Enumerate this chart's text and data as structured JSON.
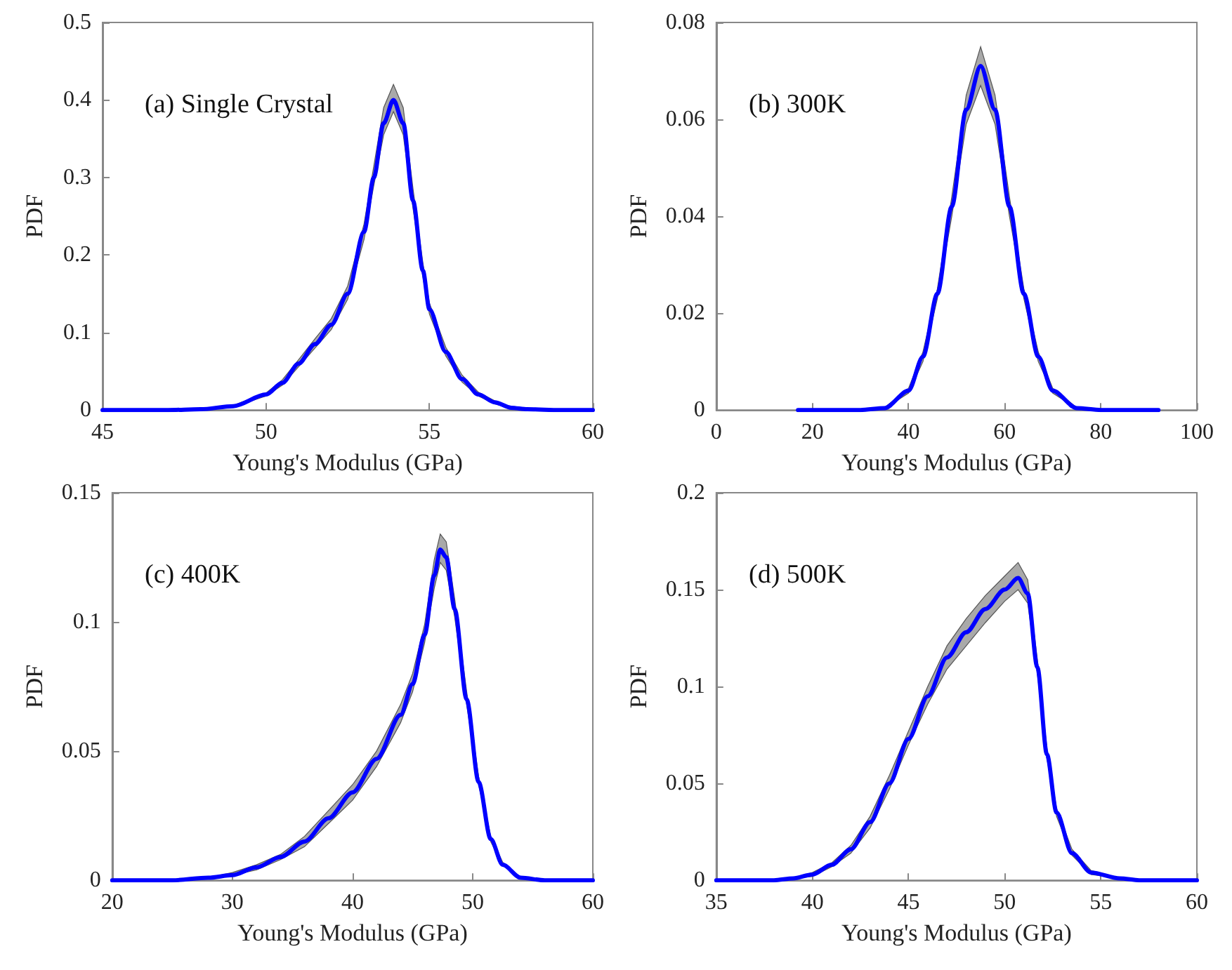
{
  "chart_data": [
    {
      "type": "line",
      "title": "(a) Single Crystal",
      "xlabel": "Young's Modulus (GPa)",
      "ylabel": "PDF",
      "xlim": [
        45,
        60
      ],
      "xticks": [
        45,
        50,
        55,
        60
      ],
      "ylim": [
        0,
        0.5
      ],
      "yticks": [
        0,
        0.1,
        0.2,
        0.3,
        0.4,
        0.5
      ],
      "grid": false,
      "marker": "none",
      "series": [
        {
          "color": "#0000ff",
          "x": [
            45,
            47,
            48,
            49,
            50,
            50.5,
            51,
            51.5,
            52,
            52.5,
            53,
            53.3,
            53.6,
            53.9,
            54.2,
            54.5,
            54.8,
            55,
            55.5,
            56,
            56.5,
            57,
            57.5,
            58,
            59,
            60
          ],
          "values": [
            0,
            0,
            0.001,
            0.005,
            0.02,
            0.035,
            0.06,
            0.085,
            0.11,
            0.15,
            0.23,
            0.3,
            0.37,
            0.4,
            0.37,
            0.27,
            0.18,
            0.13,
            0.075,
            0.04,
            0.02,
            0.01,
            0.003,
            0.001,
            0,
            0
          ],
          "lower": [
            0,
            0,
            0.001,
            0.004,
            0.018,
            0.032,
            0.056,
            0.08,
            0.104,
            0.143,
            0.22,
            0.29,
            0.355,
            0.385,
            0.355,
            0.26,
            0.172,
            0.124,
            0.07,
            0.036,
            0.018,
            0.008,
            0.002,
            0.001,
            0,
            0
          ],
          "upper": [
            0,
            0,
            0.002,
            0.006,
            0.022,
            0.039,
            0.065,
            0.092,
            0.118,
            0.16,
            0.24,
            0.315,
            0.39,
            0.42,
            0.39,
            0.285,
            0.19,
            0.138,
            0.081,
            0.045,
            0.023,
            0.012,
            0.004,
            0.001,
            0,
            0
          ]
        }
      ]
    },
    {
      "type": "line",
      "title": "(b) 300K",
      "xlabel": "Young's Modulus (GPa)",
      "ylabel": "PDF",
      "xlim": [
        0,
        100
      ],
      "xticks": [
        0,
        20,
        40,
        60,
        80,
        100
      ],
      "ylim": [
        0,
        0.08
      ],
      "yticks": [
        0,
        0.02,
        0.04,
        0.06,
        0.08
      ],
      "grid": false,
      "marker": "none",
      "series": [
        {
          "color": "#0000ff",
          "x": [
            17,
            30,
            35,
            40,
            43,
            46,
            49,
            52,
            55,
            58,
            61,
            64,
            67,
            70,
            75,
            80,
            92
          ],
          "values": [
            0,
            0,
            0.0004,
            0.004,
            0.011,
            0.024,
            0.042,
            0.062,
            0.071,
            0.062,
            0.042,
            0.024,
            0.011,
            0.004,
            0.0004,
            0,
            0
          ],
          "lower": [
            0,
            0,
            0.0003,
            0.0035,
            0.01,
            0.023,
            0.04,
            0.059,
            0.067,
            0.059,
            0.04,
            0.023,
            0.01,
            0.0035,
            0.0003,
            0,
            0
          ],
          "upper": [
            0,
            0,
            0.0005,
            0.0045,
            0.012,
            0.025,
            0.044,
            0.065,
            0.075,
            0.065,
            0.044,
            0.025,
            0.012,
            0.0045,
            0.0005,
            0,
            0
          ]
        }
      ]
    },
    {
      "type": "line",
      "title": "(c) 400K",
      "xlabel": "Young's Modulus (GPa)",
      "ylabel": "PDF",
      "xlim": [
        20,
        60
      ],
      "xticks": [
        20,
        30,
        40,
        50,
        60
      ],
      "ylim": [
        0,
        0.15
      ],
      "yticks": [
        0,
        0.05,
        0.1,
        0.15
      ],
      "grid": false,
      "marker": "none",
      "series": [
        {
          "color": "#0000ff",
          "x": [
            20,
            25,
            28,
            30,
            32,
            34,
            36,
            38,
            40,
            42,
            44,
            45,
            46,
            46.8,
            47.3,
            47.8,
            48.5,
            49.5,
            50.5,
            51.5,
            52.5,
            54,
            56,
            60
          ],
          "values": [
            0,
            0,
            0.001,
            0.002,
            0.005,
            0.009,
            0.015,
            0.024,
            0.034,
            0.047,
            0.064,
            0.076,
            0.095,
            0.118,
            0.128,
            0.125,
            0.105,
            0.07,
            0.038,
            0.016,
            0.006,
            0.001,
            0,
            0
          ],
          "lower": [
            0,
            0,
            0.001,
            0.002,
            0.004,
            0.008,
            0.013,
            0.022,
            0.031,
            0.044,
            0.061,
            0.073,
            0.092,
            0.113,
            0.123,
            0.12,
            0.102,
            0.068,
            0.037,
            0.015,
            0.006,
            0.001,
            0,
            0
          ],
          "upper": [
            0,
            0,
            0.001,
            0.003,
            0.006,
            0.01,
            0.017,
            0.027,
            0.037,
            0.05,
            0.068,
            0.08,
            0.099,
            0.124,
            0.134,
            0.131,
            0.109,
            0.073,
            0.04,
            0.017,
            0.007,
            0.001,
            0,
            0
          ]
        }
      ]
    },
    {
      "type": "line",
      "title": "(d) 500K",
      "xlabel": "Young's Modulus (GPa)",
      "ylabel": "PDF",
      "xlim": [
        35,
        60
      ],
      "xticks": [
        35,
        40,
        45,
        50,
        55,
        60
      ],
      "ylim": [
        0,
        0.2
      ],
      "yticks": [
        0,
        0.05,
        0.1,
        0.15,
        0.2
      ],
      "grid": false,
      "marker": "none",
      "series": [
        {
          "color": "#0000ff",
          "x": [
            35,
            38,
            39,
            40,
            41,
            42,
            43,
            44,
            45,
            46,
            47,
            48,
            49,
            50,
            50.7,
            51.2,
            51.7,
            52.2,
            52.7,
            53.5,
            54.5,
            56,
            57,
            60
          ],
          "values": [
            0,
            0,
            0.001,
            0.003,
            0.008,
            0.016,
            0.03,
            0.05,
            0.073,
            0.095,
            0.115,
            0.128,
            0.14,
            0.15,
            0.156,
            0.148,
            0.11,
            0.065,
            0.035,
            0.014,
            0.004,
            0.001,
            0,
            0
          ],
          "lower": [
            0,
            0,
            0.001,
            0.002,
            0.007,
            0.014,
            0.027,
            0.047,
            0.07,
            0.091,
            0.109,
            0.121,
            0.133,
            0.144,
            0.15,
            0.143,
            0.107,
            0.063,
            0.033,
            0.013,
            0.003,
            0.001,
            0,
            0
          ],
          "upper": [
            0,
            0,
            0.001,
            0.004,
            0.009,
            0.018,
            0.033,
            0.054,
            0.077,
            0.1,
            0.121,
            0.135,
            0.147,
            0.157,
            0.164,
            0.155,
            0.114,
            0.068,
            0.037,
            0.016,
            0.005,
            0.001,
            0,
            0
          ]
        }
      ]
    }
  ]
}
